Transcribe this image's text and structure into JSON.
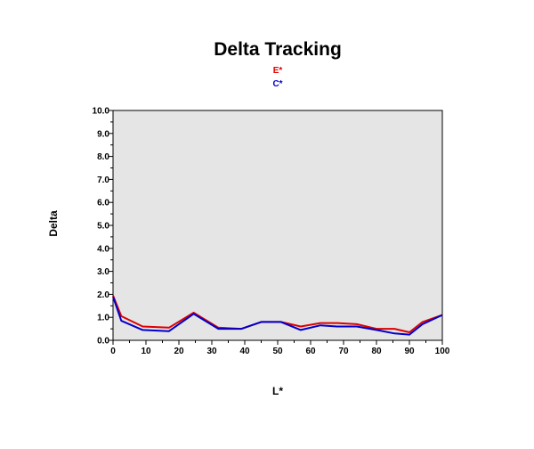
{
  "chart_data": {
    "type": "line",
    "title": "Delta Tracking",
    "xlabel": "L*",
    "ylabel": "Delta",
    "xlim": [
      0,
      100
    ],
    "ylim": [
      0,
      10
    ],
    "x_ticks": [
      "0",
      "10",
      "20",
      "30",
      "40",
      "50",
      "60",
      "70",
      "80",
      "90",
      "100"
    ],
    "y_ticks": [
      "0.0",
      "1.0",
      "2.0",
      "3.0",
      "4.0",
      "5.0",
      "6.0",
      "7.0",
      "8.0",
      "9.0",
      "10.0"
    ],
    "grid": false,
    "plot_background": "#e5e5e5",
    "legend_position": "top-center",
    "x": [
      0,
      2.5,
      9,
      17,
      24.5,
      32,
      39,
      45,
      51,
      57,
      63,
      68,
      74,
      80,
      85.5,
      90,
      94,
      100
    ],
    "series": [
      {
        "name": "E*",
        "color": "#dd0000",
        "values": [
          1.95,
          1.05,
          0.6,
          0.55,
          1.2,
          0.55,
          0.5,
          0.8,
          0.8,
          0.6,
          0.75,
          0.75,
          0.7,
          0.5,
          0.5,
          0.35,
          0.8,
          1.1
        ]
      },
      {
        "name": "C*",
        "color": "#0000cc",
        "values": [
          1.9,
          0.85,
          0.45,
          0.4,
          1.15,
          0.5,
          0.5,
          0.8,
          0.8,
          0.45,
          0.65,
          0.6,
          0.6,
          0.45,
          0.3,
          0.25,
          0.7,
          1.1
        ]
      }
    ]
  }
}
